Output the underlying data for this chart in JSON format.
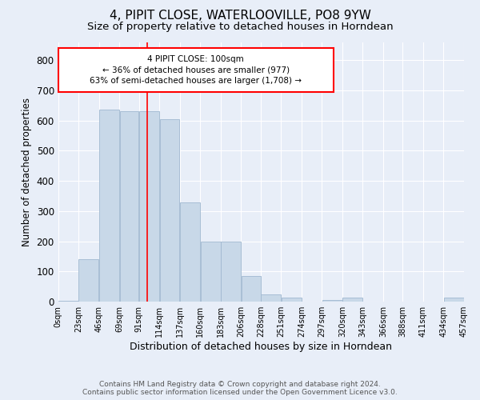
{
  "title": "4, PIPIT CLOSE, WATERLOOVILLE, PO8 9YW",
  "subtitle": "Size of property relative to detached houses in Horndean",
  "xlabel": "Distribution of detached houses by size in Horndean",
  "ylabel": "Number of detached properties",
  "footer_line1": "Contains HM Land Registry data © Crown copyright and database right 2024.",
  "footer_line2": "Contains public sector information licensed under the Open Government Licence v3.0.",
  "annotation_line1": "4 PIPIT CLOSE: 100sqm",
  "annotation_line2": "← 36% of detached houses are smaller (977)",
  "annotation_line3": "63% of semi-detached houses are larger (1,708) →",
  "bar_edges": [
    0,
    23,
    46,
    69,
    91,
    114,
    137,
    160,
    183,
    206,
    228,
    251,
    274,
    297,
    320,
    343,
    366,
    388,
    411,
    434,
    457
  ],
  "bar_heights": [
    2,
    140,
    635,
    630,
    630,
    605,
    330,
    200,
    200,
    85,
    25,
    15,
    0,
    5,
    15,
    0,
    0,
    0,
    0,
    15
  ],
  "bar_color": "#c8d8e8",
  "bar_edge_color": "#a0b8d0",
  "property_line_x": 100,
  "ylim": [
    0,
    860
  ],
  "background_color": "#e8eef8",
  "plot_background": "#e8eef8",
  "grid_color": "#ffffff",
  "title_fontsize": 11,
  "subtitle_fontsize": 9.5,
  "tick_label_fontsize": 7,
  "ylabel_fontsize": 8.5,
  "xlabel_fontsize": 9,
  "footer_fontsize": 6.5
}
